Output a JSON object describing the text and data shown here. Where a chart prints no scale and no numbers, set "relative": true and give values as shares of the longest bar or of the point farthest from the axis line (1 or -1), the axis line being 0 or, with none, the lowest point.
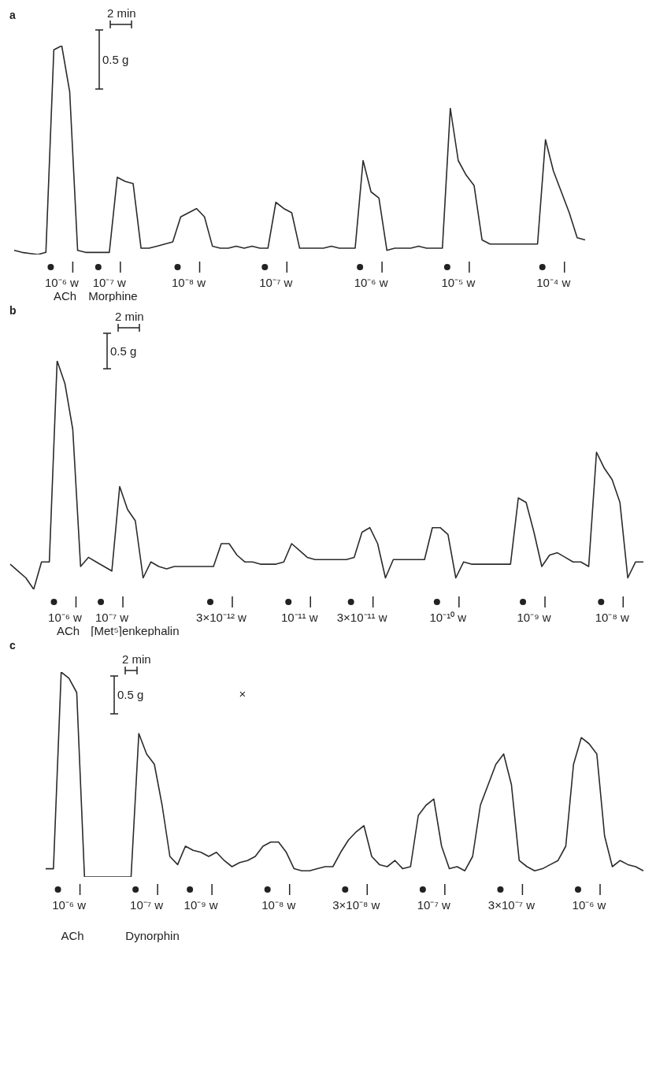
{
  "chart_data": [
    {
      "type": "line",
      "title": "a",
      "relative": true,
      "color": "#2b2b2b",
      "categories": [
        null,
        null,
        null,
        null,
        null,
        null,
        "10⁻⁶ w",
        null,
        null,
        null,
        null,
        null,
        "10⁻⁷ w",
        null,
        null,
        null,
        null,
        null,
        null,
        null,
        null,
        null,
        "10⁻⁸ w",
        null,
        null,
        null,
        null,
        null,
        null,
        null,
        null,
        null,
        null,
        "10⁻⁷ w",
        null,
        null,
        null,
        null,
        null,
        null,
        null,
        null,
        null,
        null,
        null,
        "10⁻⁶ w",
        null,
        null,
        null,
        null,
        null,
        null,
        null,
        null,
        null,
        null,
        "10⁻⁵ w",
        null,
        null,
        null,
        null,
        null,
        null,
        null,
        null,
        null,
        null,
        null,
        "10⁻⁴ w",
        null,
        null,
        null,
        null
      ],
      "values": [
        0.02,
        0.01,
        0.005,
        0,
        0.01,
        0.98,
        1.0,
        0.78,
        0.02,
        0.01,
        0.01,
        0.01,
        0.01,
        0.37,
        0.35,
        0.34,
        0.03,
        0.03,
        0.04,
        0.05,
        0.06,
        0.18,
        0.2,
        0.22,
        0.18,
        0.04,
        0.03,
        0.03,
        0.04,
        0.03,
        0.04,
        0.03,
        0.03,
        0.25,
        0.22,
        0.2,
        0.03,
        0.03,
        0.03,
        0.03,
        0.04,
        0.03,
        0.03,
        0.03,
        0.45,
        0.3,
        0.27,
        0.02,
        0.03,
        0.03,
        0.03,
        0.04,
        0.03,
        0.03,
        0.03,
        0.7,
        0.45,
        0.38,
        0.33,
        0.07,
        0.05,
        0.05,
        0.05,
        0.05,
        0.05,
        0.05,
        0.05,
        0.55,
        0.4,
        0.3,
        0.2,
        0.08,
        0.07
      ],
      "annotations": [
        "2 min",
        "0.5 g",
        "ACh",
        "Morphine"
      ]
    },
    {
      "type": "line",
      "title": "b",
      "relative": true,
      "color": "#2b2b2b",
      "categories": [
        null,
        null,
        null,
        null,
        null,
        null,
        null,
        "10⁻⁶ w",
        null,
        null,
        null,
        null,
        null,
        "10⁻⁷ w",
        null,
        null,
        null,
        null,
        null,
        null,
        null,
        null,
        null,
        null,
        null,
        null,
        null,
        "3×10⁻¹² w",
        null,
        null,
        null,
        null,
        null,
        null,
        null,
        null,
        null,
        "10⁻¹¹ w",
        null,
        null,
        null,
        null,
        null,
        null,
        null,
        "3×10⁻¹¹ w",
        null,
        null,
        null,
        null,
        null,
        null,
        null,
        null,
        null,
        null,
        "10⁻¹⁰ w",
        null,
        null,
        null,
        null,
        null,
        null,
        null,
        null,
        null,
        null,
        "10⁻⁹ w",
        null,
        null,
        null,
        null,
        null,
        null,
        null,
        null,
        null,
        "10⁻⁸ w",
        null,
        null,
        null,
        null
      ],
      "values": [
        0.11,
        0.08,
        0.05,
        0,
        0.12,
        0.12,
        1.0,
        0.9,
        0.7,
        0.1,
        0.14,
        0.12,
        0.1,
        0.08,
        0.45,
        0.35,
        0.3,
        0.05,
        0.12,
        0.1,
        0.09,
        0.1,
        0.1,
        0.1,
        0.1,
        0.1,
        0.1,
        0.2,
        0.2,
        0.15,
        0.12,
        0.12,
        0.11,
        0.11,
        0.11,
        0.12,
        0.2,
        0.17,
        0.14,
        0.13,
        0.13,
        0.13,
        0.13,
        0.13,
        0.14,
        0.25,
        0.27,
        0.2,
        0.05,
        0.13,
        0.13,
        0.13,
        0.13,
        0.13,
        0.27,
        0.27,
        0.24,
        0.05,
        0.12,
        0.11,
        0.11,
        0.11,
        0.11,
        0.11,
        0.11,
        0.4,
        0.38,
        0.25,
        0.1,
        0.15,
        0.16,
        0.14,
        0.12,
        0.12,
        0.1,
        0.6,
        0.53,
        0.48,
        0.38,
        0.05,
        0.12,
        0.12
      ],
      "annotations": [
        "2 min",
        "0.5 g",
        "ACh",
        "[Met⁵]enkephalin"
      ]
    },
    {
      "type": "line",
      "title": "c",
      "relative": true,
      "color": "#2b2b2b",
      "categories": [
        null,
        null,
        null,
        "10⁻⁶ w",
        null,
        null,
        null,
        null,
        null,
        null,
        null,
        null,
        null,
        "10⁻⁷ w",
        null,
        null,
        null,
        null,
        null,
        null,
        "10⁻⁹ w",
        null,
        null,
        null,
        null,
        null,
        null,
        null,
        null,
        null,
        "10⁻⁸ w",
        null,
        null,
        null,
        null,
        null,
        null,
        null,
        null,
        null,
        "3×10⁻⁸ w",
        null,
        null,
        null,
        null,
        null,
        null,
        null,
        null,
        null,
        "10⁻⁷ w",
        null,
        null,
        null,
        null,
        null,
        null,
        null,
        null,
        null,
        "3×10⁻⁷ w",
        null,
        null,
        null,
        null,
        null,
        null,
        null,
        null,
        null,
        "10⁻⁶ w",
        null,
        null,
        null,
        null,
        null,
        null,
        null
      ],
      "values": [
        0.04,
        0.04,
        1.0,
        0.97,
        0.9,
        0.0,
        0.0,
        0.0,
        0.0,
        0.0,
        0.0,
        0.0,
        0.7,
        0.6,
        0.55,
        0.35,
        0.1,
        0.06,
        0.15,
        0.13,
        0.12,
        0.1,
        0.12,
        0.08,
        0.05,
        0.07,
        0.08,
        0.1,
        0.15,
        0.17,
        0.17,
        0.12,
        0.04,
        0.03,
        0.03,
        0.04,
        0.05,
        0.05,
        0.12,
        0.18,
        0.22,
        0.25,
        0.1,
        0.06,
        0.05,
        0.08,
        0.04,
        0.05,
        0.3,
        0.35,
        0.38,
        0.15,
        0.04,
        0.05,
        0.03,
        0.1,
        0.35,
        0.45,
        0.55,
        0.6,
        0.45,
        0.08,
        0.05,
        0.03,
        0.04,
        0.06,
        0.08,
        0.15,
        0.55,
        0.68,
        0.65,
        0.6,
        0.2,
        0.05,
        0.08,
        0.06,
        0.05,
        0.03
      ],
      "annotations": [
        "2 min",
        "0.5 g",
        "ACh",
        "Dynorphin",
        "×"
      ]
    }
  ]
}
